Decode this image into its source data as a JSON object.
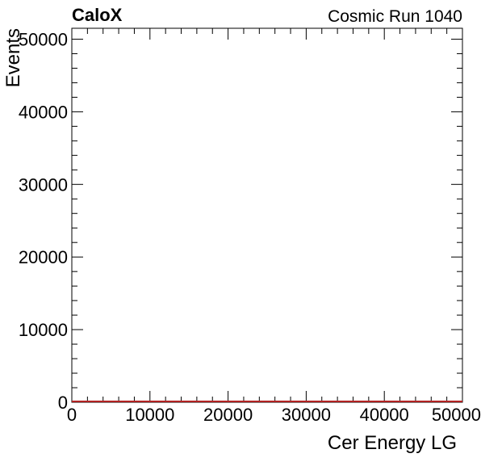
{
  "chart_data": {
    "type": "line",
    "experiment_label": "CaloX",
    "run_label": "Cosmic Run 1040",
    "xlabel": "Cer Energy LG",
    "ylabel": "Events",
    "xlim": [
      0,
      50000
    ],
    "ylim": [
      0,
      51500
    ],
    "x_ticks": [
      0,
      10000,
      20000,
      30000,
      40000,
      50000
    ],
    "x_tick_labels": [
      "0",
      "10000",
      "20000",
      "30000",
      "40000",
      "50000"
    ],
    "y_ticks": [
      0,
      10000,
      20000,
      30000,
      40000,
      50000
    ],
    "y_tick_labels": [
      "0",
      "10000",
      "20000",
      "30000",
      "40000",
      "50000"
    ],
    "grid": false,
    "series": [
      {
        "color": "#b22222",
        "x": [
          0,
          50000
        ],
        "y": [
          0,
          0
        ]
      }
    ]
  }
}
